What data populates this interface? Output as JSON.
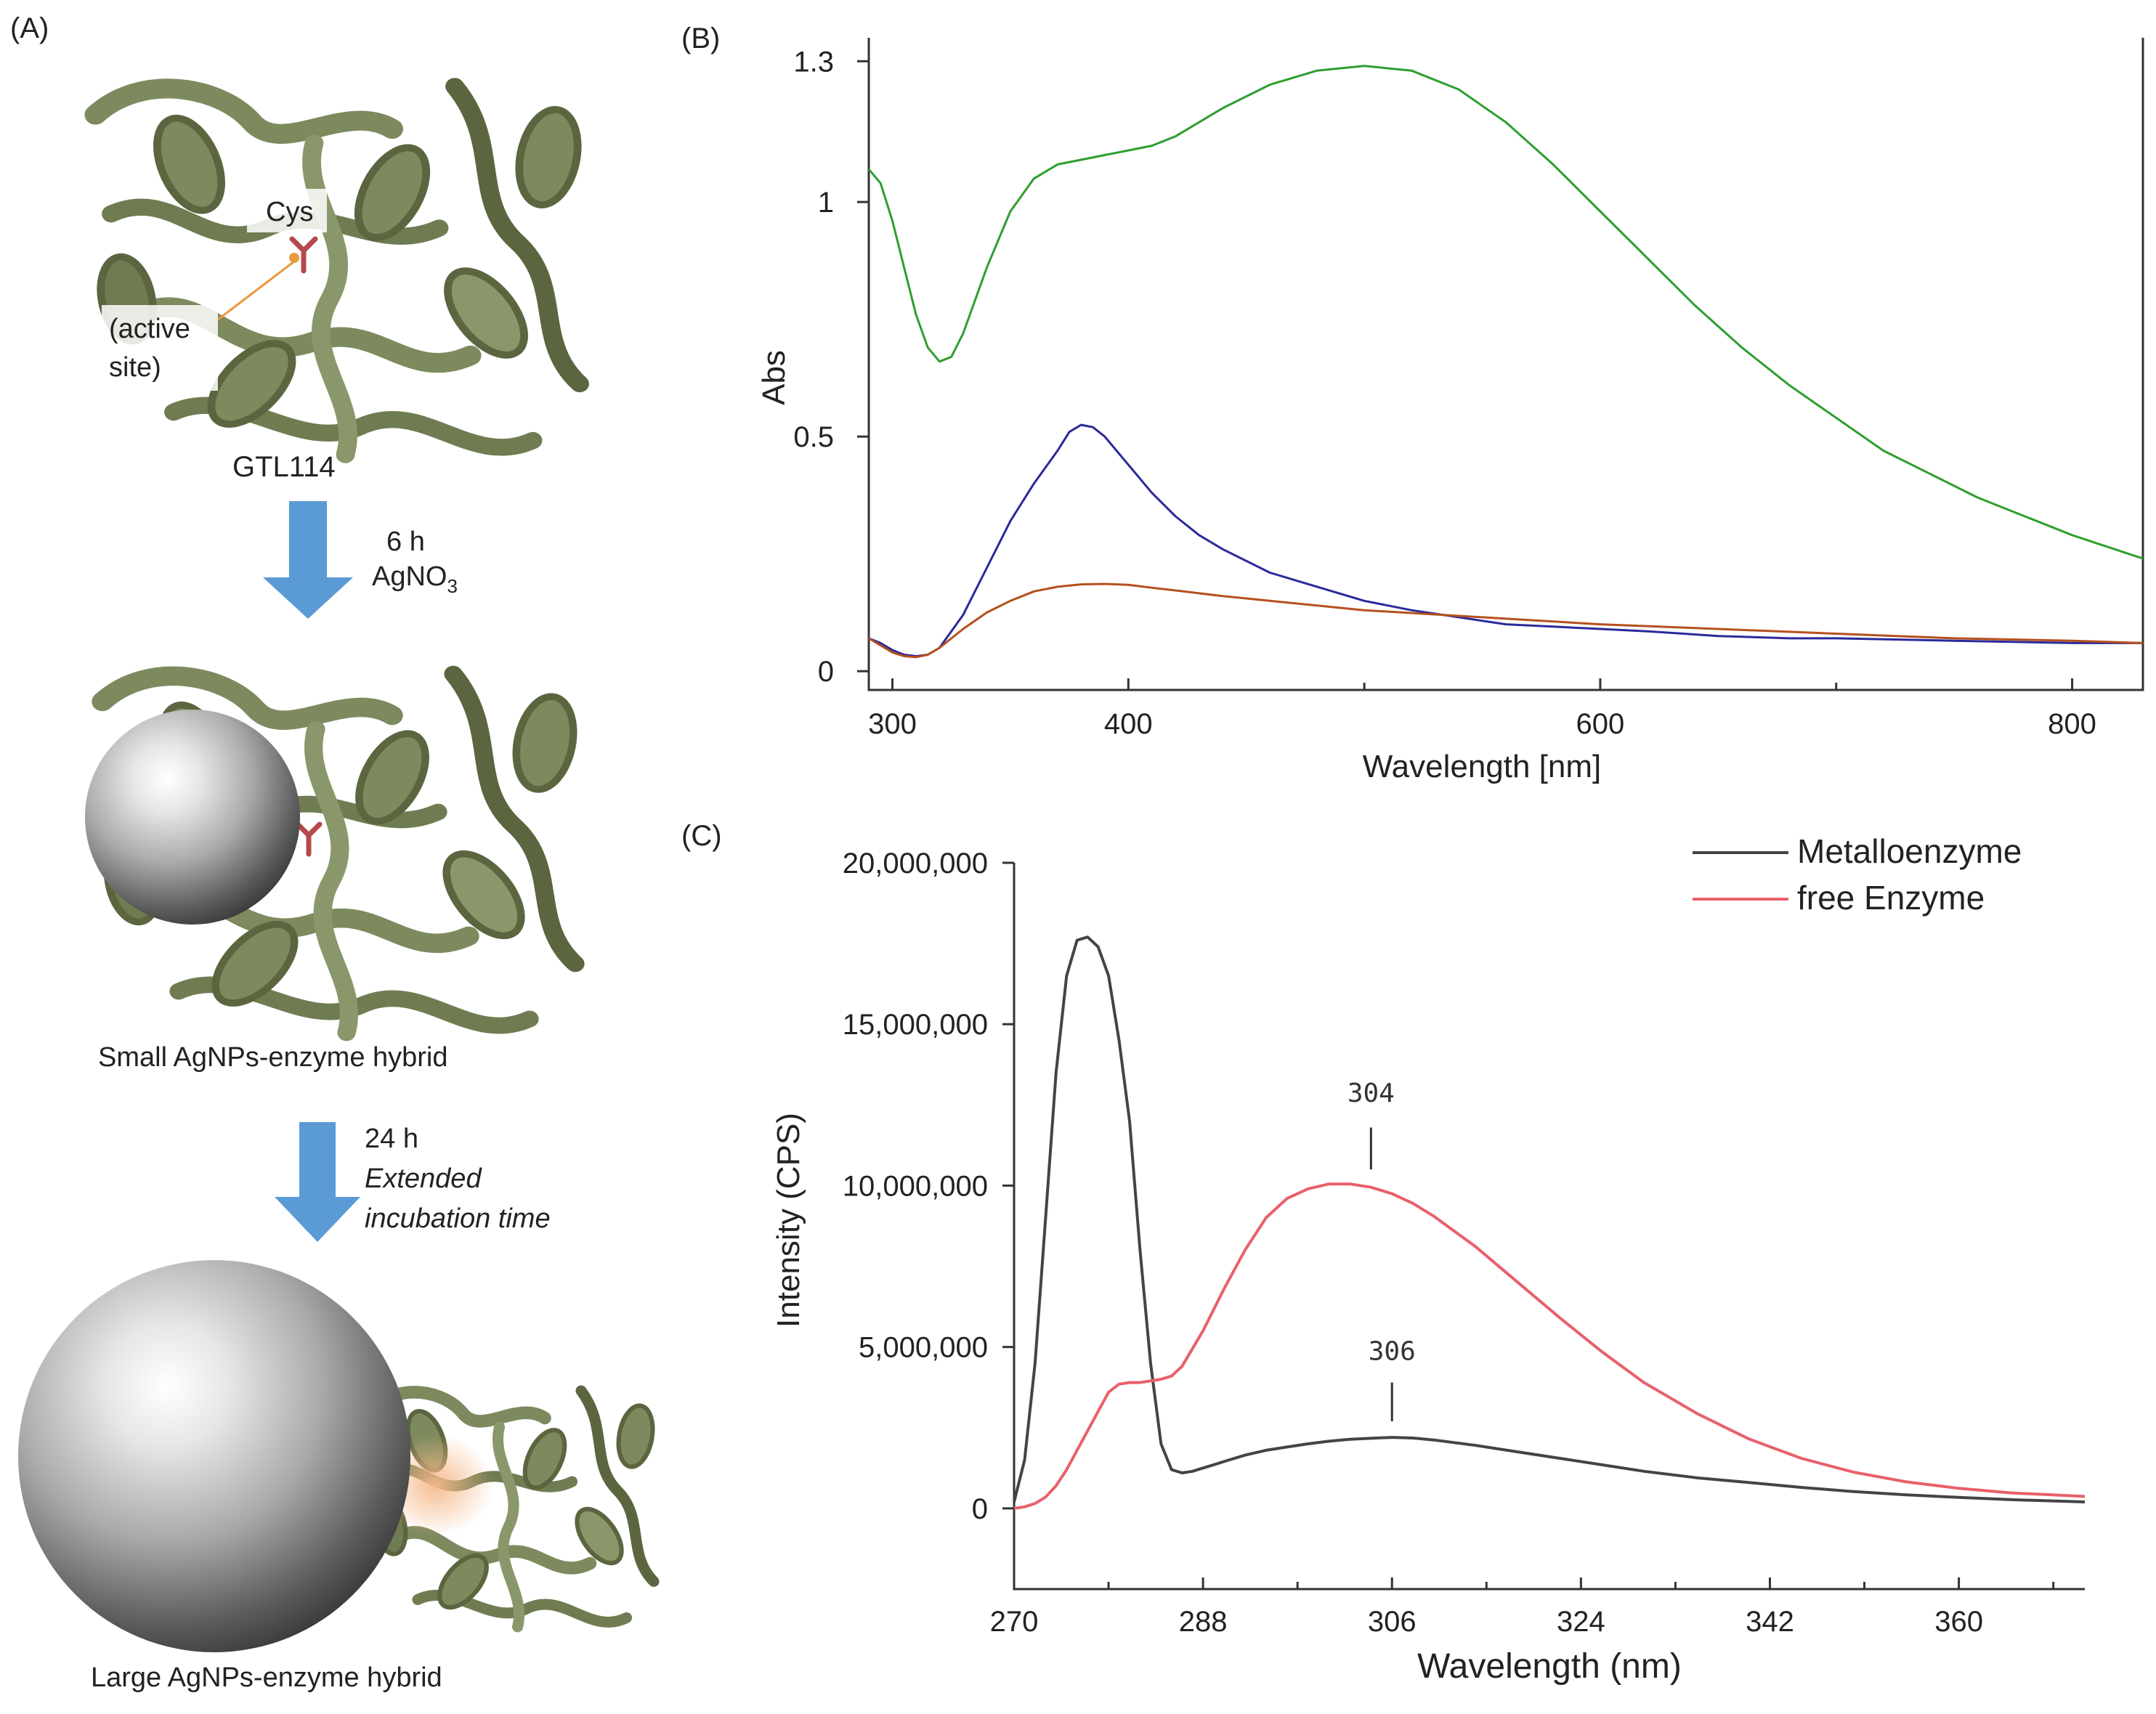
{
  "panel_a": {
    "label": "(A)",
    "cys_label": "Cys",
    "active_site_line1": "(active",
    "active_site_line2": "site)",
    "protein_name": "GTL114",
    "step1_time": "6 h",
    "step1_reagent": "AgNO",
    "step1_reagent_sub": "3",
    "hybrid_small": "Small AgNPs-enzyme hybrid",
    "step2_time": "24 h",
    "step2_line1": "Extended",
    "step2_line2": "incubation time",
    "hybrid_large": "Large AgNPs-enzyme hybrid",
    "colors": {
      "protein": "#7d8a5e",
      "protein_dark": "#5b6640",
      "arrow": "#5b9bd5",
      "cys": "#b5484a",
      "halo": "#f6b98a"
    }
  },
  "chart_data": [
    {
      "panel": "(B)",
      "type": "line",
      "xlabel": "Wavelength [nm]",
      "ylabel": "Abs",
      "xlim": [
        290,
        830
      ],
      "ylim": [
        -0.04,
        1.35
      ],
      "xticks": [
        300,
        400,
        600,
        800
      ],
      "xticks_minor": [
        500,
        700
      ],
      "yticks": [
        0,
        0.5,
        1,
        1.3
      ],
      "ytick_labels": [
        "0",
        "0.5",
        "1",
        "1.3"
      ],
      "series": [
        {
          "color": "#2e9e2e",
          "x": [
            290,
            295,
            300,
            305,
            310,
            315,
            320,
            325,
            330,
            335,
            340,
            345,
            350,
            360,
            370,
            380,
            390,
            400,
            410,
            420,
            430,
            440,
            460,
            480,
            500,
            520,
            540,
            560,
            580,
            600,
            620,
            640,
            660,
            680,
            700,
            720,
            740,
            760,
            780,
            800,
            830
          ],
          "y": [
            1.07,
            1.04,
            0.96,
            0.86,
            0.76,
            0.69,
            0.66,
            0.67,
            0.72,
            0.79,
            0.86,
            0.92,
            0.98,
            1.05,
            1.08,
            1.09,
            1.1,
            1.11,
            1.12,
            1.14,
            1.17,
            1.2,
            1.25,
            1.28,
            1.29,
            1.28,
            1.24,
            1.17,
            1.08,
            0.98,
            0.88,
            0.78,
            0.69,
            0.61,
            0.54,
            0.47,
            0.42,
            0.37,
            0.33,
            0.29,
            0.24
          ]
        },
        {
          "color": "#2a2a9a",
          "x": [
            290,
            295,
            300,
            305,
            310,
            315,
            320,
            330,
            340,
            350,
            360,
            370,
            375,
            380,
            385,
            390,
            400,
            410,
            420,
            430,
            440,
            460,
            480,
            500,
            520,
            540,
            560,
            580,
            600,
            620,
            650,
            680,
            700,
            750,
            800,
            830
          ],
          "y": [
            0.07,
            0.06,
            0.045,
            0.035,
            0.032,
            0.035,
            0.05,
            0.12,
            0.22,
            0.32,
            0.4,
            0.47,
            0.51,
            0.525,
            0.52,
            0.5,
            0.44,
            0.38,
            0.33,
            0.29,
            0.26,
            0.21,
            0.18,
            0.15,
            0.13,
            0.115,
            0.1,
            0.095,
            0.09,
            0.085,
            0.075,
            0.07,
            0.07,
            0.065,
            0.06,
            0.06
          ]
        },
        {
          "color": "#b5501e",
          "x": [
            290,
            295,
            300,
            305,
            310,
            315,
            320,
            330,
            340,
            350,
            360,
            370,
            380,
            390,
            400,
            410,
            420,
            440,
            460,
            480,
            500,
            550,
            600,
            650,
            700,
            750,
            800,
            830
          ],
          "y": [
            0.07,
            0.055,
            0.04,
            0.032,
            0.03,
            0.035,
            0.05,
            0.09,
            0.125,
            0.15,
            0.17,
            0.18,
            0.185,
            0.186,
            0.184,
            0.178,
            0.172,
            0.16,
            0.15,
            0.14,
            0.13,
            0.115,
            0.1,
            0.09,
            0.08,
            0.07,
            0.065,
            0.06
          ]
        }
      ]
    },
    {
      "panel": "(C)",
      "type": "line",
      "xlabel": "Wavelength (nm)",
      "ylabel": "Intensity (CPS)",
      "xlim": [
        270,
        372
      ],
      "ylim": [
        -2500000,
        20000000
      ],
      "xticks": [
        270,
        288,
        306,
        324,
        342,
        360
      ],
      "xticks_minor": [
        279,
        297,
        315,
        333,
        351,
        369
      ],
      "yticks": [
        0,
        5000000,
        10000000,
        15000000,
        20000000
      ],
      "ytick_labels": [
        "0",
        "5,000,000",
        "10,000,000",
        "15,000,000",
        "20,000,000"
      ],
      "legend_position": "top-right",
      "series": [
        {
          "name": "Metalloenzyme",
          "color": "#444444",
          "x": [
            270,
            271,
            272,
            273,
            274,
            275,
            276,
            277,
            278,
            279,
            280,
            281,
            282,
            283,
            284,
            285,
            286,
            287,
            288,
            289,
            290,
            292,
            294,
            296,
            298,
            300,
            302,
            304,
            306,
            308,
            310,
            314,
            318,
            322,
            326,
            330,
            335,
            340,
            345,
            350,
            355,
            360,
            365,
            372
          ],
          "y": [
            200000,
            1500000,
            4500000,
            9000000,
            13500000,
            16500000,
            17600000,
            17700000,
            17400000,
            16500000,
            14500000,
            12000000,
            8000000,
            4500000,
            2000000,
            1200000,
            1100000,
            1150000,
            1250000,
            1350000,
            1450000,
            1650000,
            1800000,
            1900000,
            2000000,
            2080000,
            2140000,
            2170000,
            2200000,
            2180000,
            2120000,
            1950000,
            1750000,
            1550000,
            1350000,
            1150000,
            950000,
            800000,
            650000,
            520000,
            420000,
            340000,
            270000,
            200000
          ]
        },
        {
          "name": "free Enzyme",
          "color": "#e8606a",
          "x": [
            270,
            271,
            272,
            273,
            274,
            275,
            276,
            277,
            278,
            279,
            280,
            281,
            282,
            283,
            284,
            285,
            286,
            288,
            290,
            292,
            294,
            296,
            298,
            300,
            302,
            304,
            306,
            308,
            310,
            314,
            318,
            322,
            326,
            330,
            335,
            340,
            345,
            350,
            355,
            360,
            365,
            372
          ],
          "y": [
            0,
            50000,
            150000,
            350000,
            700000,
            1200000,
            1800000,
            2400000,
            3000000,
            3600000,
            3850000,
            3900000,
            3900000,
            3950000,
            4000000,
            4100000,
            4400000,
            5500000,
            6800000,
            8000000,
            9000000,
            9600000,
            9900000,
            10050000,
            10050000,
            9950000,
            9750000,
            9450000,
            9050000,
            8100000,
            7000000,
            5900000,
            4850000,
            3900000,
            2950000,
            2150000,
            1550000,
            1120000,
            820000,
            620000,
            480000,
            370000
          ]
        }
      ],
      "annotations": [
        {
          "text": "304",
          "x": 304,
          "y_line_bottom": 10500000,
          "y_line_top": 11800000,
          "y_text": 12600000
        },
        {
          "text": "306",
          "x": 306,
          "y_line_bottom": 2700000,
          "y_line_top": 3900000,
          "y_text": 4600000
        }
      ]
    }
  ]
}
